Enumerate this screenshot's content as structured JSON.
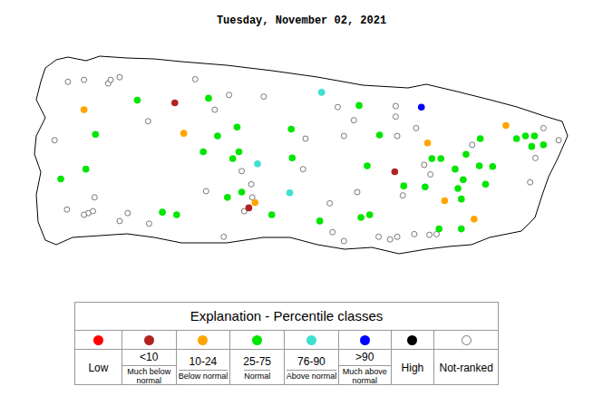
{
  "chart_data": {
    "type": "scatter",
    "title": "Tuesday, November 02, 2021",
    "xlim": [
      -67.33,
      -65.53
    ],
    "ylim": [
      17.88,
      18.57
    ],
    "tick_labels": false,
    "grid": false,
    "series": [
      {
        "name": "Low",
        "color": "#ff0000",
        "marker": "circle",
        "x": [],
        "values": []
      },
      {
        "name": "<10",
        "color": "#b22222",
        "marker": "circle",
        "x": [
          -66.839,
          -66.129,
          -66.6
        ],
        "values": [
          18.381,
          18.171,
          18.061
        ]
      },
      {
        "name": "10-24",
        "color": "#ffa500",
        "marker": "circle",
        "x": [
          -67.132,
          -66.81,
          -66.023,
          -65.77,
          -66.58,
          -65.968,
          -65.873
        ],
        "values": [
          18.36,
          18.288,
          18.259,
          18.312,
          18.077,
          18.083,
          18.027
        ]
      },
      {
        "name": "25-75",
        "color": "#00e600",
        "marker": "circle",
        "x": [
          -66.96,
          -66.73,
          -66.244,
          -67.095,
          -66.638,
          -66.463,
          -66.701,
          -66.747,
          -66.632,
          -66.652,
          -66.46,
          -66.218,
          -67.126,
          -67.207,
          -65.736,
          -65.853,
          -65.707,
          -65.678,
          -65.687,
          -65.649,
          -66.009,
          -65.98,
          -65.899,
          -65.934,
          -65.856,
          -65.908,
          -65.925,
          -65.813,
          -65.836,
          -66.031,
          -66.1,
          -65.914,
          -65.986,
          -66.669,
          -66.623,
          -66.879,
          -66.833,
          -66.526,
          -66.238,
          -66.21,
          -66.371,
          -65.914,
          -66.178
        ],
        "values": [
          18.389,
          18.395,
          18.373,
          18.285,
          18.307,
          18.301,
          18.28,
          18.232,
          18.232,
          18.211,
          18.213,
          18.189,
          18.179,
          18.149,
          18.272,
          18.272,
          18.28,
          18.28,
          18.248,
          18.253,
          18.211,
          18.211,
          18.224,
          18.179,
          18.189,
          18.147,
          18.12,
          18.187,
          18.133,
          18.125,
          18.128,
          18.088,
          17.997,
          18.093,
          18.109,
          18.048,
          18.04,
          18.04,
          18.032,
          18.04,
          18.021,
          17.997,
          18.283
        ]
      },
      {
        "name": "76-90",
        "color": "#40e0d0",
        "marker": "circle",
        "x": [
          -66.365,
          -66.572,
          -66.468
        ],
        "values": [
          18.413,
          18.195,
          18.107
        ]
      },
      {
        "name": ">90",
        "color": "#0000ff",
        "marker": "circle",
        "x": [
          -66.043
        ],
        "values": [
          18.368
        ]
      },
      {
        "name": "High",
        "color": "#000000",
        "marker": "circle",
        "x": [],
        "values": []
      },
      {
        "name": "Not-ranked",
        "color": "#777777",
        "marker": "open circle",
        "x": [
          -67.184,
          -67.132,
          -67.054,
          -67.046,
          -67.017,
          -66.773,
          -66.313,
          -66.417,
          -66.293,
          -66.261,
          -66.126,
          -66.126,
          -66.06,
          -66.121,
          -66.034,
          -66.014,
          -66.103,
          -66.25,
          -66.181,
          -66.144,
          -66.121,
          -66.293,
          -65.994,
          -66.017,
          -67.187,
          -67.118,
          -67.103,
          -67.132,
          -66.991,
          -67.017,
          -66.922,
          -66.615,
          -66.589,
          -66.592,
          -66.738,
          -66.681,
          -66.425,
          -66.33,
          -66.339,
          -66.066,
          -65.879,
          -65.675,
          -65.649,
          -65.6,
          -65.692,
          -66.623,
          -66.552,
          -66.664,
          -67.227,
          -67.098,
          -66.925,
          -66.71
        ],
        "values": [
          18.445,
          18.451,
          18.44,
          18.451,
          18.459,
          18.453,
          18.368,
          18.272,
          18.28,
          18.328,
          18.371,
          18.339,
          18.304,
          18.28,
          18.192,
          18.163,
          18.099,
          18.109,
          17.973,
          17.965,
          17.973,
          17.96,
          17.981,
          17.979,
          18.056,
          18.045,
          18.051,
          18.04,
          18.045,
          18.021,
          18.013,
          18.051,
          18.093,
          18.133,
          18.112,
          17.973,
          18.179,
          17.987,
          18.075,
          17.981,
          18.253,
          18.213,
          18.304,
          18.267,
          18.139,
          18.173,
          18.4,
          18.405,
          18.267,
          18.093,
          18.325,
          18.36
        ]
      }
    ]
  },
  "explanation": {
    "title": "Explanation - Percentile classes",
    "descriptions": [
      null,
      "Much below normal",
      "Below normal",
      "Normal",
      "Above normal",
      "Much above normal",
      null,
      null
    ]
  }
}
